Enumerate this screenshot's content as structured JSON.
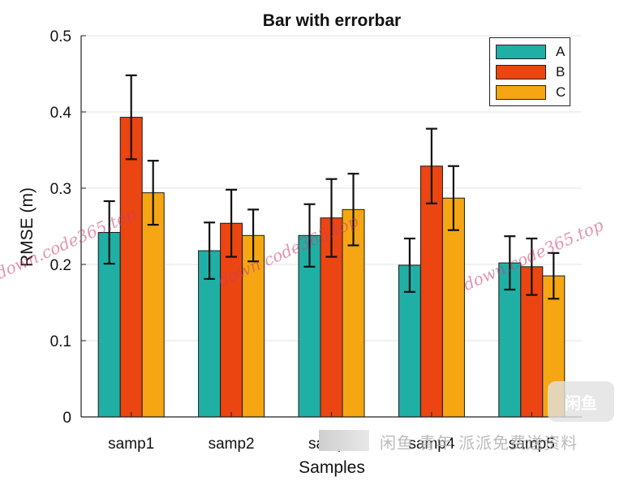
{
  "chart_data": {
    "type": "bar",
    "title": "Bar with errorbar",
    "xlabel": "Samples",
    "ylabel": "RMSE (m)",
    "categories": [
      "samp1",
      "samp2",
      "samp3",
      "samp4",
      "samp5"
    ],
    "ylim": [
      0,
      0.5
    ],
    "yticks": [
      "0",
      "0.1",
      "0.2",
      "0.3",
      "0.4",
      "0.5"
    ],
    "grid": true,
    "legend_position": "top-right",
    "series": [
      {
        "name": "A",
        "color": "#20AFA5",
        "values": [
          0.242,
          0.218,
          0.238,
          0.199,
          0.202
        ],
        "errors": [
          0.041,
          0.037,
          0.041,
          0.035,
          0.035
        ]
      },
      {
        "name": "B",
        "color": "#EB4511",
        "values": [
          0.393,
          0.254,
          0.261,
          0.329,
          0.197
        ],
        "errors": [
          0.055,
          0.044,
          0.051,
          0.049,
          0.037
        ]
      },
      {
        "name": "C",
        "color": "#F6A613",
        "values": [
          0.294,
          0.238,
          0.272,
          0.287,
          0.185
        ],
        "errors": [
          0.042,
          0.034,
          0.047,
          0.042,
          0.03
        ]
      }
    ]
  },
  "watermarks": {
    "overlay_text": "down.code365.top",
    "bottom_label": "闲鱼 青年 派派免费送资料",
    "badge_text": "闲鱼"
  }
}
